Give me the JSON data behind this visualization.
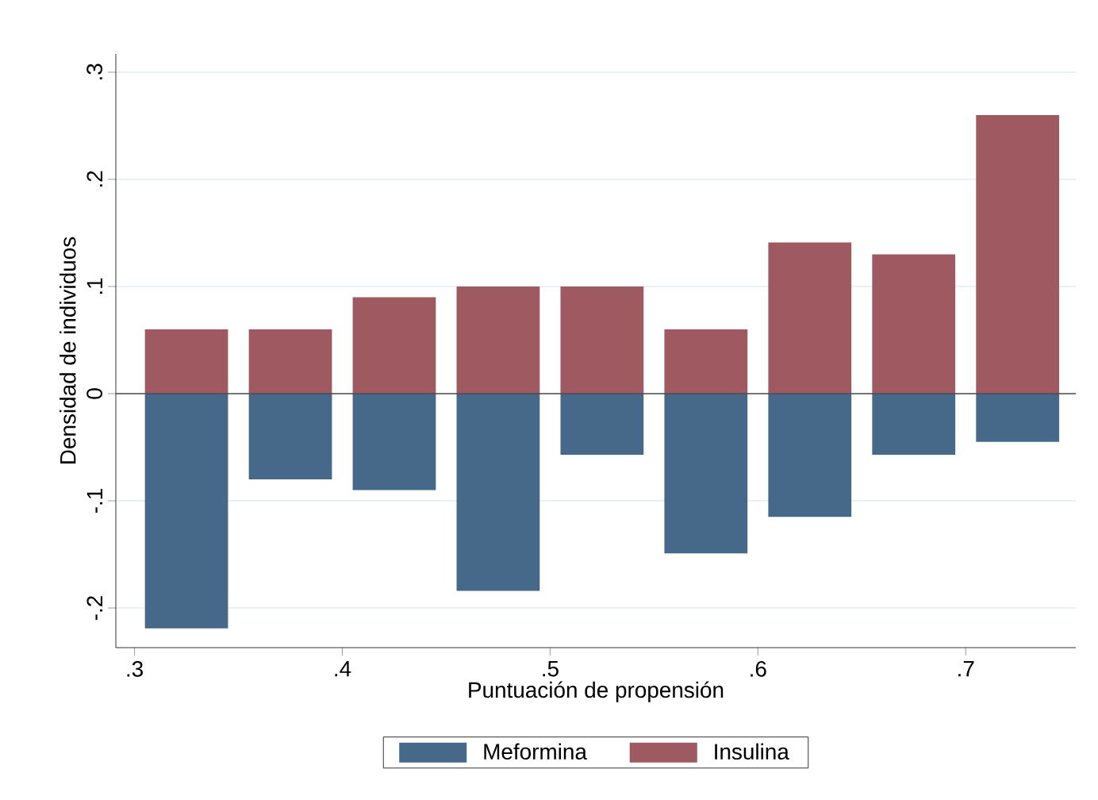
{
  "chart_data": {
    "type": "bar",
    "xlabel": "Puntuación de propensión",
    "ylabel": "Densidad de individuos",
    "x": [
      0.325,
      0.375,
      0.425,
      0.475,
      0.525,
      0.575,
      0.625,
      0.675,
      0.725
    ],
    "series": [
      {
        "name": "Meformina",
        "color": "#46698a",
        "values": [
          -0.219,
          -0.08,
          -0.09,
          -0.184,
          -0.057,
          -0.149,
          -0.115,
          -0.057,
          -0.045
        ]
      },
      {
        "name": "Insulina",
        "color": "#9e5a60",
        "values": [
          0.06,
          0.06,
          0.09,
          0.1,
          0.1,
          0.06,
          0.141,
          0.13,
          0.26
        ]
      }
    ],
    "xlim": [
      0.291,
      0.753
    ],
    "ylim": [
      -0.237,
      0.317
    ],
    "xticks": [
      {
        "value": 0.3,
        "label": ".3"
      },
      {
        "value": 0.4,
        "label": ".4"
      },
      {
        "value": 0.5,
        "label": ".5"
      },
      {
        "value": 0.6,
        "label": ".6"
      },
      {
        "value": 0.7,
        "label": ".7"
      }
    ],
    "yticks": [
      {
        "value": -0.2,
        "label": "-.2"
      },
      {
        "value": -0.1,
        "label": "-.1"
      },
      {
        "value": 0,
        "label": "0"
      },
      {
        "value": 0.1,
        "label": ".1"
      },
      {
        "value": 0.2,
        "label": ".2"
      },
      {
        "value": 0.3,
        "label": ".3"
      }
    ],
    "grid": "y",
    "legend": "bottom",
    "stacked": true
  }
}
